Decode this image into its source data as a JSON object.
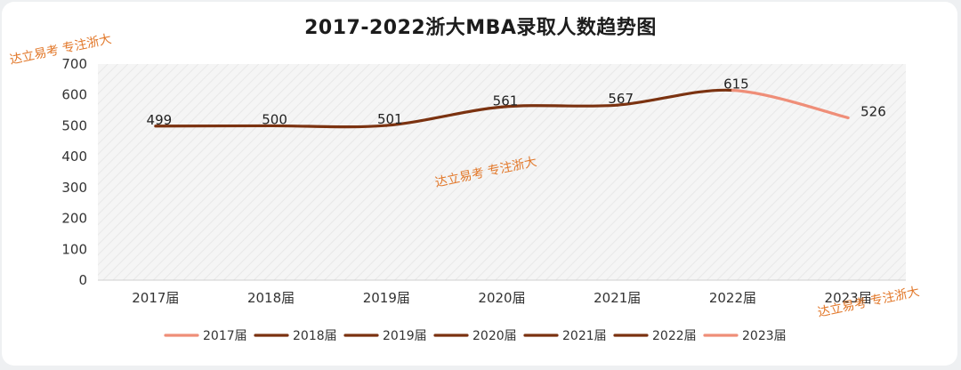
{
  "chart_data": {
    "type": "line",
    "title": "2017-2022浙大MBA录取人数趋势图",
    "categories": [
      "2017届",
      "2018届",
      "2019届",
      "2020届",
      "2021届",
      "2022届",
      "2023届"
    ],
    "values": [
      499,
      500,
      501,
      561,
      567,
      615,
      526
    ],
    "data_labels": [
      "499",
      "500",
      "501",
      "561",
      "567",
      "615",
      "526"
    ],
    "ylim": [
      0,
      700
    ],
    "yticks": [
      0,
      100,
      200,
      300,
      400,
      500,
      600,
      700
    ],
    "ytick_labels": [
      "0",
      "100",
      "200",
      "300",
      "400",
      "500",
      "600",
      "700"
    ],
    "grid": false,
    "legend_position": "bottom",
    "legend": [
      "2017届",
      "2018届",
      "2019届",
      "2020届",
      "2021届",
      "2022届",
      "2023届"
    ],
    "colors": {
      "main_line": "#7b3210",
      "highlight_line": "#ef8e78",
      "plot_background": "#f4f4f4",
      "watermark": "#e2782a"
    },
    "legend_colors": [
      "#ef8e78",
      "#7b3210",
      "#7b3210",
      "#7b3210",
      "#7b3210",
      "#7b3210",
      "#ef8e78"
    ]
  },
  "watermarks": [
    "达立易考 专注浙大",
    "达立易考 专注浙大",
    "达立易考 专注浙大"
  ]
}
